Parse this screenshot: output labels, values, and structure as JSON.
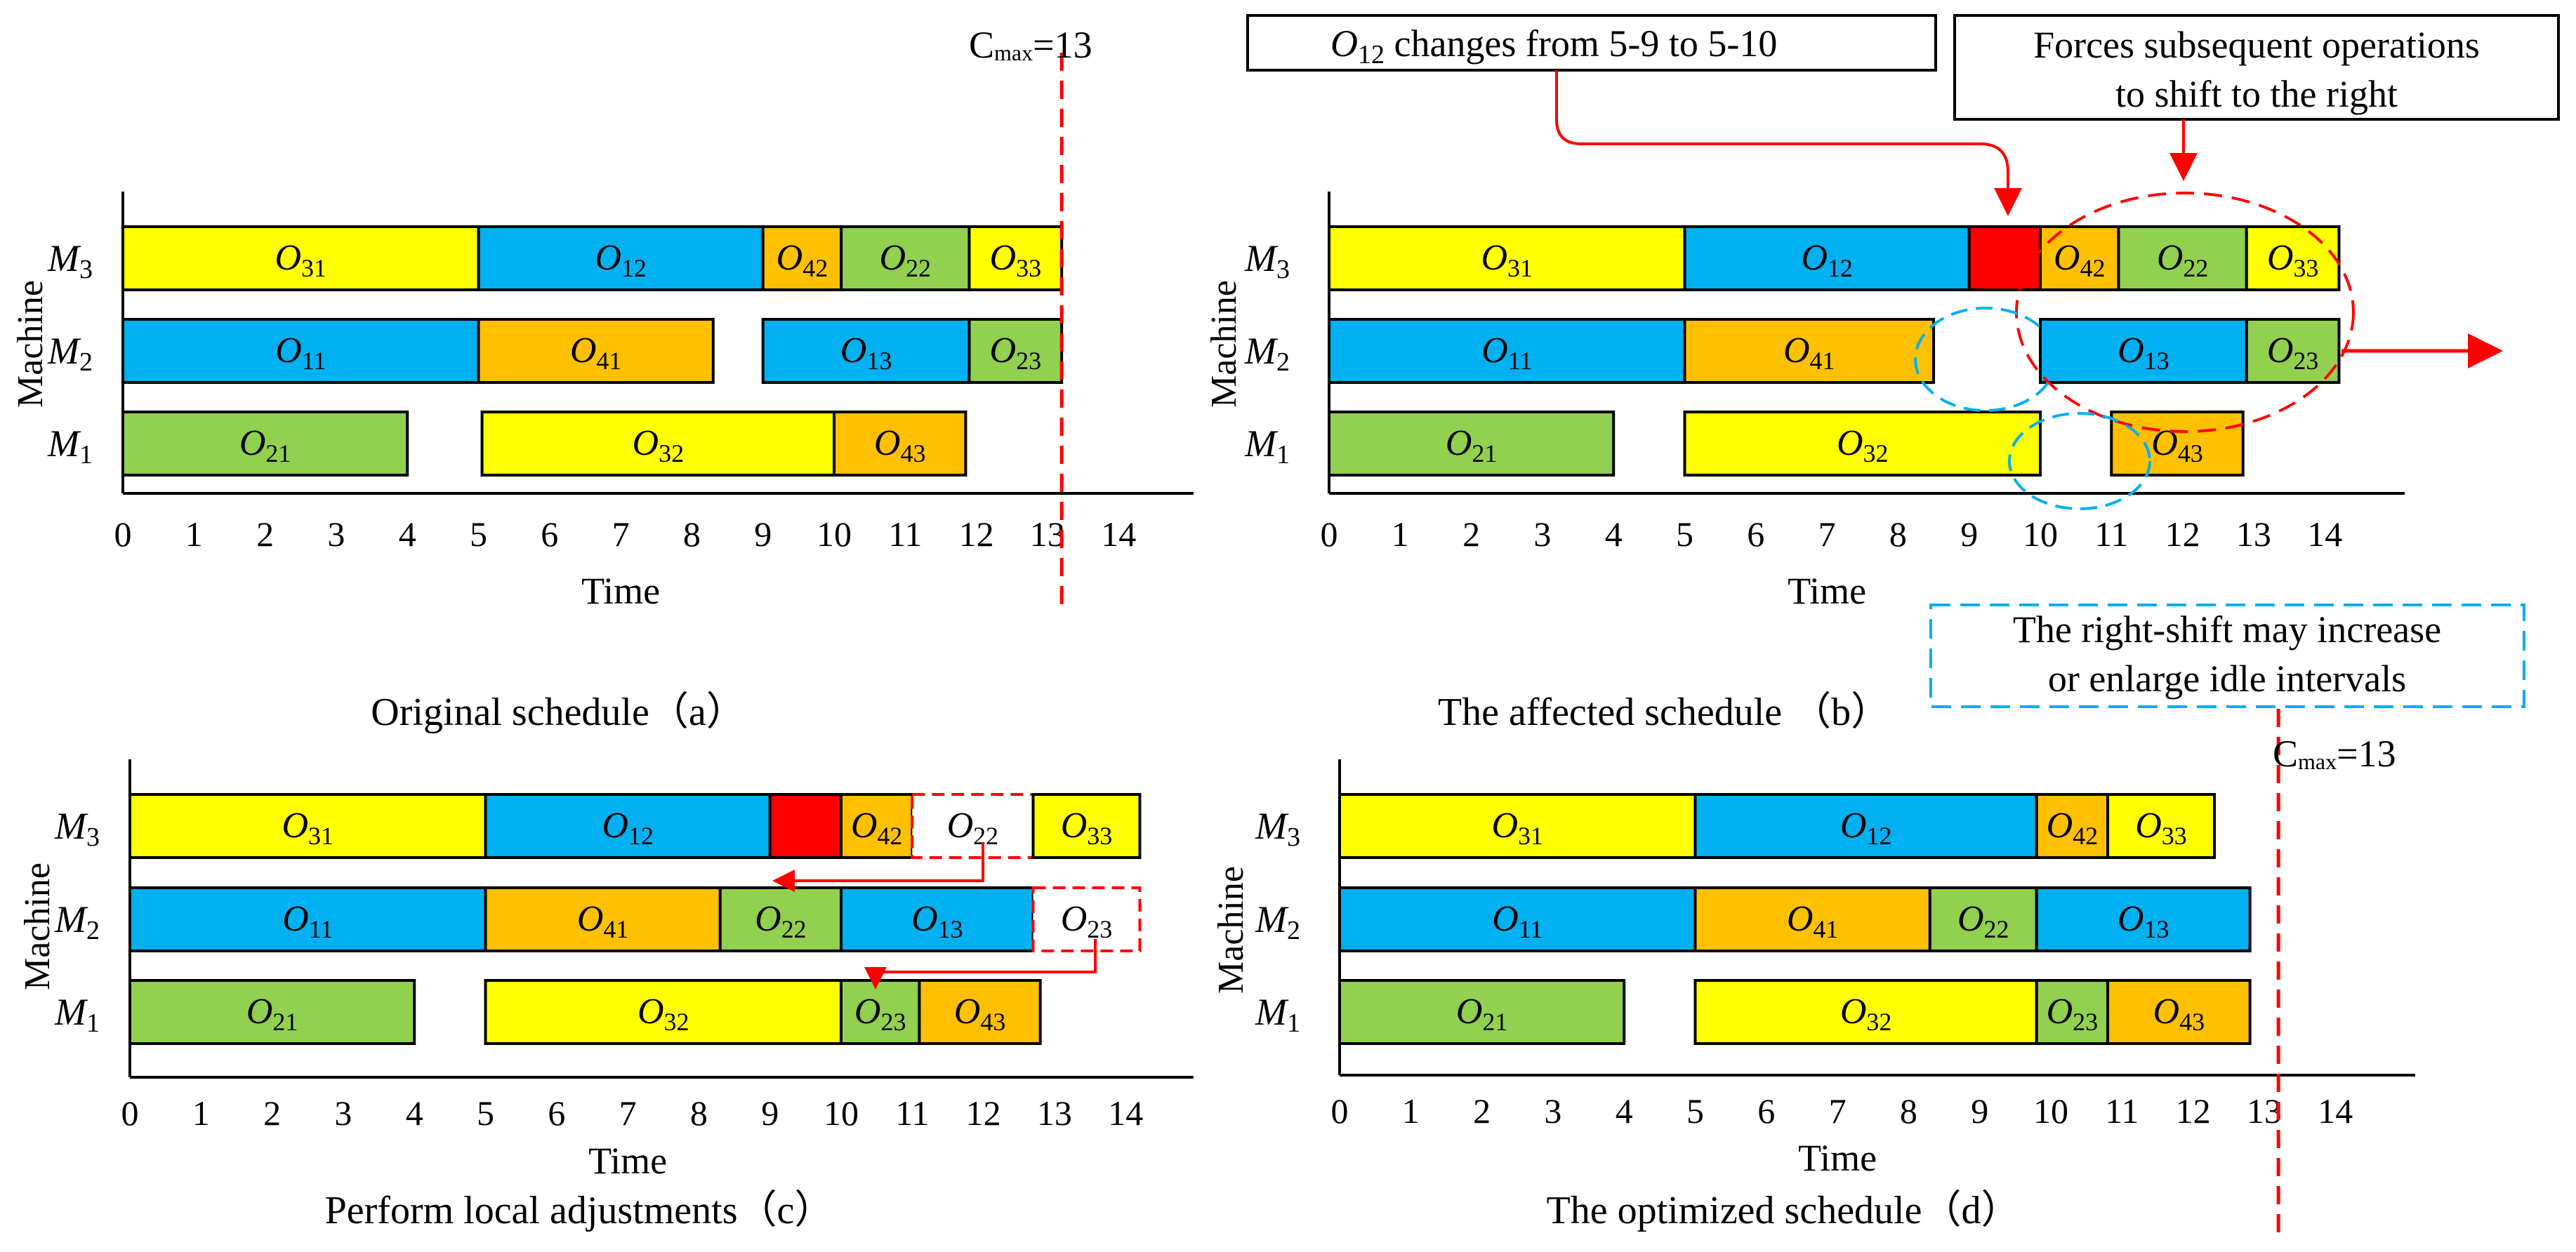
{
  "colors": {
    "yellow": "#FFFF00",
    "blue": "#00B0F0",
    "orange": "#FFC000",
    "green": "#92D050",
    "red": "#FF0000",
    "cyan": "#00B0F0",
    "white": "#FFFFFF",
    "red_line": "#FF0000"
  },
  "labels": {
    "machine": "Machine",
    "time": "Time",
    "cmax_c": "C",
    "cmax_sub": "max",
    "cmax_val": "=13",
    "note_o12_O": "O",
    "note_o12_sub": "12",
    "note_o12_rest": " changes from 5-9 to 5-10",
    "note_force_1": "Forces subsequent operations",
    "note_force_2": "to shift to the right",
    "note_idle_1": "The right-shift may increase",
    "note_idle_2": "or enlarge idle intervals"
  },
  "chart_data": [
    {
      "type": "gantt",
      "caption": "Original schedule（a）",
      "xlabel": "Time",
      "ylabel": "Machine",
      "xlim": [
        0,
        14
      ],
      "ticks": [
        0,
        1,
        2,
        3,
        4,
        5,
        6,
        7,
        8,
        9,
        10,
        11,
        12,
        13,
        14
      ],
      "machines": [
        "M1",
        "M2",
        "M3"
      ],
      "cmax": 13,
      "bars": [
        {
          "machine": "M3",
          "op": "31",
          "start": 0,
          "end": 5,
          "color": "yellow"
        },
        {
          "machine": "M3",
          "op": "12",
          "start": 5,
          "end": 9,
          "color": "blue"
        },
        {
          "machine": "M3",
          "op": "42",
          "start": 9,
          "end": 10.1,
          "color": "orange"
        },
        {
          "machine": "M3",
          "op": "22",
          "start": 10.1,
          "end": 11.9,
          "color": "green"
        },
        {
          "machine": "M3",
          "op": "33",
          "start": 11.9,
          "end": 13.2,
          "color": "yellow"
        },
        {
          "machine": "M2",
          "op": "11",
          "start": 0,
          "end": 5,
          "color": "blue"
        },
        {
          "machine": "M2",
          "op": "41",
          "start": 5,
          "end": 8.3,
          "color": "orange"
        },
        {
          "machine": "M2",
          "op": "13",
          "start": 9,
          "end": 11.9,
          "color": "blue"
        },
        {
          "machine": "M2",
          "op": "23",
          "start": 11.9,
          "end": 13.2,
          "color": "green"
        },
        {
          "machine": "M1",
          "op": "21",
          "start": 0,
          "end": 4,
          "color": "green"
        },
        {
          "machine": "M1",
          "op": "32",
          "start": 5.05,
          "end": 10,
          "color": "yellow"
        },
        {
          "machine": "M1",
          "op": "43",
          "start": 10,
          "end": 11.85,
          "color": "orange"
        }
      ]
    },
    {
      "type": "gantt",
      "caption": "The affected schedule （b）",
      "xlabel": "Time",
      "ylabel": "Machine",
      "xlim": [
        0,
        14
      ],
      "ticks": [
        0,
        1,
        2,
        3,
        4,
        5,
        6,
        7,
        8,
        9,
        10,
        11,
        12,
        13,
        14
      ],
      "machines": [
        "M1",
        "M2",
        "M3"
      ],
      "bars": [
        {
          "machine": "M3",
          "op": "31",
          "start": 0,
          "end": 5,
          "color": "yellow"
        },
        {
          "machine": "M3",
          "op": "12",
          "start": 5,
          "end": 9,
          "color": "blue"
        },
        {
          "machine": "M3",
          "op": "",
          "start": 9,
          "end": 10,
          "color": "red"
        },
        {
          "machine": "M3",
          "op": "42",
          "start": 10,
          "end": 11.1,
          "color": "orange"
        },
        {
          "machine": "M3",
          "op": "22",
          "start": 11.1,
          "end": 12.9,
          "color": "green"
        },
        {
          "machine": "M3",
          "op": "33",
          "start": 12.9,
          "end": 14.2,
          "color": "yellow"
        },
        {
          "machine": "M2",
          "op": "11",
          "start": 0,
          "end": 5,
          "color": "blue"
        },
        {
          "machine": "M2",
          "op": "41",
          "start": 5,
          "end": 8.5,
          "color": "orange"
        },
        {
          "machine": "M2",
          "op": "13",
          "start": 10,
          "end": 12.9,
          "color": "blue"
        },
        {
          "machine": "M2",
          "op": "23",
          "start": 12.9,
          "end": 14.2,
          "color": "green"
        },
        {
          "machine": "M1",
          "op": "21",
          "start": 0,
          "end": 4,
          "color": "green"
        },
        {
          "machine": "M1",
          "op": "32",
          "start": 5,
          "end": 10,
          "color": "yellow"
        },
        {
          "machine": "M1",
          "op": "43",
          "start": 11,
          "end": 12.85,
          "color": "orange"
        }
      ]
    },
    {
      "type": "gantt",
      "caption": "Perform local adjustments（c）",
      "xlabel": "Time",
      "ylabel": "Machine",
      "xlim": [
        0,
        14
      ],
      "ticks": [
        0,
        1,
        2,
        3,
        4,
        5,
        6,
        7,
        8,
        9,
        10,
        11,
        12,
        13,
        14
      ],
      "machines": [
        "M1",
        "M2",
        "M3"
      ],
      "bars": [
        {
          "machine": "M3",
          "op": "31",
          "start": 0,
          "end": 5,
          "color": "yellow"
        },
        {
          "machine": "M3",
          "op": "12",
          "start": 5,
          "end": 9,
          "color": "blue"
        },
        {
          "machine": "M3",
          "op": "",
          "start": 9,
          "end": 10,
          "color": "red"
        },
        {
          "machine": "M3",
          "op": "42",
          "start": 10,
          "end": 11,
          "color": "orange"
        },
        {
          "machine": "M3",
          "op": "22",
          "start": 11,
          "end": 12.7,
          "color": "white",
          "dashed": true
        },
        {
          "machine": "M3",
          "op": "33",
          "start": 12.7,
          "end": 14.2,
          "color": "yellow"
        },
        {
          "machine": "M2",
          "op": "11",
          "start": 0,
          "end": 5,
          "color": "blue"
        },
        {
          "machine": "M2",
          "op": "41",
          "start": 5,
          "end": 8.3,
          "color": "orange"
        },
        {
          "machine": "M2",
          "op": "22",
          "start": 8.3,
          "end": 10,
          "color": "green"
        },
        {
          "machine": "M2",
          "op": "13",
          "start": 10,
          "end": 12.7,
          "color": "blue"
        },
        {
          "machine": "M2",
          "op": "23",
          "start": 12.7,
          "end": 14.2,
          "color": "white",
          "dashed": true
        },
        {
          "machine": "M1",
          "op": "21",
          "start": 0,
          "end": 4,
          "color": "green"
        },
        {
          "machine": "M1",
          "op": "32",
          "start": 5,
          "end": 10,
          "color": "yellow"
        },
        {
          "machine": "M1",
          "op": "23",
          "start": 10,
          "end": 11.1,
          "color": "green"
        },
        {
          "machine": "M1",
          "op": "43",
          "start": 11.1,
          "end": 12.8,
          "color": "orange"
        }
      ]
    },
    {
      "type": "gantt",
      "caption": "The optimized schedule（d）",
      "xlabel": "Time",
      "ylabel": "Machine",
      "xlim": [
        0,
        14
      ],
      "ticks": [
        0,
        1,
        2,
        3,
        4,
        5,
        6,
        7,
        8,
        9,
        10,
        11,
        12,
        13,
        14
      ],
      "machines": [
        "M1",
        "M2",
        "M3"
      ],
      "cmax": 13,
      "bars": [
        {
          "machine": "M3",
          "op": "31",
          "start": 0,
          "end": 5,
          "color": "yellow"
        },
        {
          "machine": "M3",
          "op": "12",
          "start": 5,
          "end": 9.8,
          "color": "blue"
        },
        {
          "machine": "M3",
          "op": "42",
          "start": 9.8,
          "end": 10.8,
          "color": "orange"
        },
        {
          "machine": "M3",
          "op": "33",
          "start": 10.8,
          "end": 12.3,
          "color": "yellow"
        },
        {
          "machine": "M2",
          "op": "11",
          "start": 0,
          "end": 5,
          "color": "blue"
        },
        {
          "machine": "M2",
          "op": "41",
          "start": 5,
          "end": 8.3,
          "color": "orange"
        },
        {
          "machine": "M2",
          "op": "22",
          "start": 8.3,
          "end": 9.8,
          "color": "green"
        },
        {
          "machine": "M2",
          "op": "13",
          "start": 9.8,
          "end": 12.8,
          "color": "blue"
        },
        {
          "machine": "M1",
          "op": "21",
          "start": 0,
          "end": 4,
          "color": "green"
        },
        {
          "machine": "M1",
          "op": "32",
          "start": 5,
          "end": 9.8,
          "color": "yellow"
        },
        {
          "machine": "M1",
          "op": "23",
          "start": 9.8,
          "end": 10.8,
          "color": "green"
        },
        {
          "machine": "M1",
          "op": "43",
          "start": 10.8,
          "end": 12.8,
          "color": "orange"
        }
      ]
    }
  ]
}
